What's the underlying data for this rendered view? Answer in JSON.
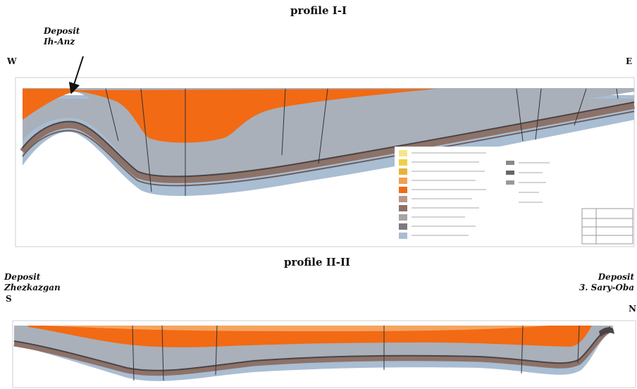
{
  "profile1": {
    "title": "profile I-I",
    "deposit_label_line1": "Deposit",
    "deposit_label_line2": "Ih-Anz",
    "dir_left": "W",
    "dir_right": "E"
  },
  "profile2": {
    "title": "profile II-II",
    "deposit_left_line1": "Deposit",
    "deposit_left_line2": "Zhezkazgan",
    "deposit_right_line1": "Deposit",
    "deposit_right_line2": "3. Sary-Oba",
    "dir_left": "S",
    "dir_right": "N"
  },
  "colors": {
    "orange": "#f26a14",
    "grey": "#a9b0ba",
    "blue": "#a9bdd3",
    "brown": "#8d7268",
    "dark": "#4a4447",
    "frame": "#cfcfcf"
  }
}
